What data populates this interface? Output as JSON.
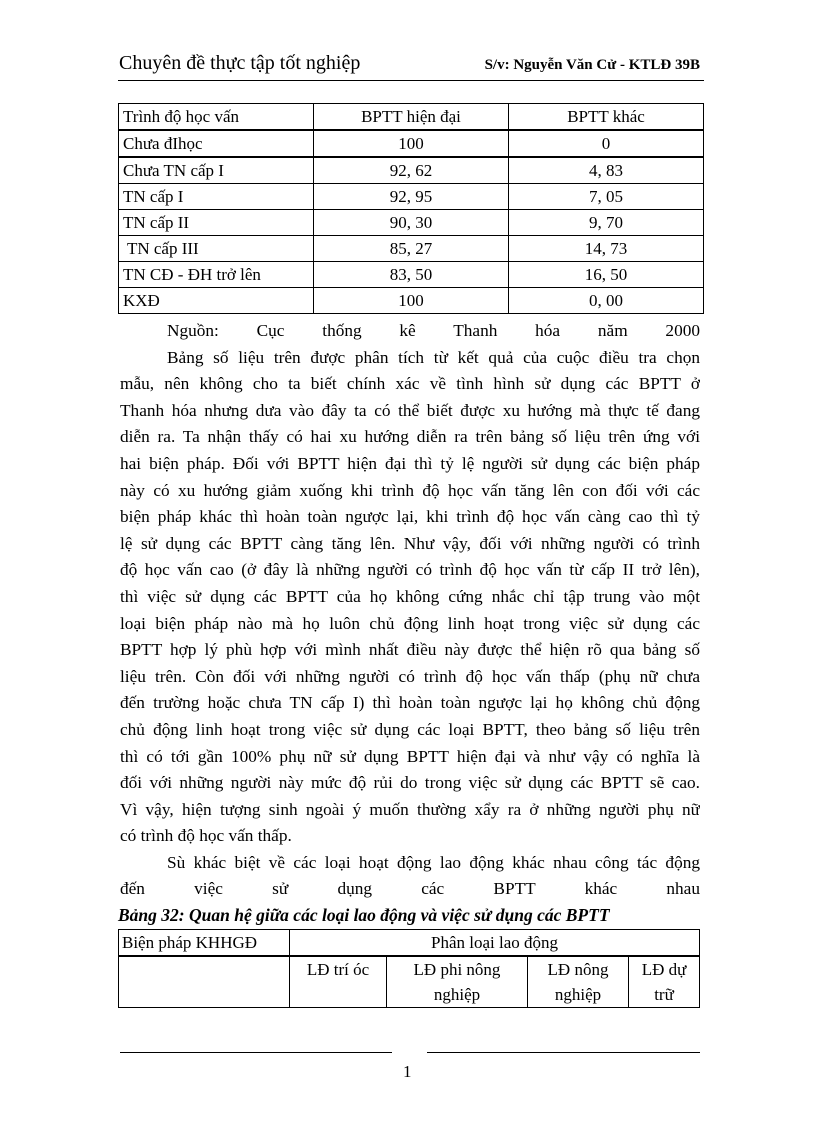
{
  "header": {
    "title": "Chuyên  đề thực  tập  tốt nghiệp",
    "author": "S/v: Nguyễn Văn Cử - KTLĐ 39B"
  },
  "table1": {
    "headers": [
      "Trình độ học vấn",
      "BPTT hiện  đại",
      "BPTT khác"
    ],
    "rows": [
      [
        "Chưa đIhọc",
        "100",
        "0"
      ],
      [
        "Chưa TN cấp I",
        "92, 62",
        "4, 83"
      ],
      [
        "TN cấp I",
        "92, 95",
        "7, 05"
      ],
      [
        "TN cấp II",
        "90, 30",
        "9, 70"
      ],
      [
        " TN cấp III",
        "85, 27",
        "14, 73"
      ],
      [
        "TN CĐ - ĐH trở lên",
        "83, 50",
        "16, 50"
      ],
      [
        "KXĐ",
        "100",
        "0, 00"
      ]
    ]
  },
  "body_lines": [
    {
      "text": "Nguồn: Cục thống kê Thanh hóa năm 2000",
      "indent": true,
      "last": false
    },
    {
      "text": "Bảng số liệu trên được phân tích từ kết quả của cuộc điều tra chọn",
      "indent": true,
      "last": false
    },
    {
      "text": "mẫu, nên không cho ta biết chính xác về tình hình sử dụng các BPTT ở",
      "indent": false,
      "last": false
    },
    {
      "text": "Thanh hóa nhưng dưa vào đây ta có thể biết được xu hướng mà thực tế đang",
      "indent": false,
      "last": false
    },
    {
      "text": "diễn ra. Ta nhận thấy có hai xu hướng diễn ra trên bảng số liệu trên ứng với",
      "indent": false,
      "last": false
    },
    {
      "text": "hai biện pháp. Đối với BPTT hiện đại thì tỷ lệ người sử dụng các biện pháp",
      "indent": false,
      "last": false
    },
    {
      "text": "này có xu hướng giảm xuống khi trình độ học vấn tăng lên con đối với các",
      "indent": false,
      "last": false
    },
    {
      "text": "biện pháp khác thì hoàn toàn ngược lại, khi trình độ học vấn càng cao thì tỷ",
      "indent": false,
      "last": false
    },
    {
      "text": "lệ sử dụng các BPTT càng tăng lên. Như vậy, đối với những người có trình",
      "indent": false,
      "last": false
    },
    {
      "text": "độ học vấn cao (ở đây là những người có trình độ học vấn từ cấp II trở lên),",
      "indent": false,
      "last": false
    },
    {
      "text": "thì việc sử dụng các BPTT của họ không cứng nhắc chỉ tập trung vào một",
      "indent": false,
      "last": false
    },
    {
      "text": "loại biện pháp nào mà họ luôn chủ động linh hoạt trong việc sử dụng các",
      "indent": false,
      "last": false
    },
    {
      "text": "BPTT hợp lý phù hợp với mình nhất điều này được thể hiện rõ qua bảng số",
      "indent": false,
      "last": false
    },
    {
      "text": "liệu trên. Còn đối với những người có trình độ học vấn thấp (phụ nữ chưa",
      "indent": false,
      "last": false
    },
    {
      "text": "đến trường hoặc chưa TN cấp I) thì hoàn toàn ngược lại họ không chủ động",
      "indent": false,
      "last": false
    },
    {
      "text": "chủ động linh hoạt trong việc sử dụng các loại BPTT, theo bảng số liệu trên",
      "indent": false,
      "last": false
    },
    {
      "text": "thì có tới gần 100% phụ nữ sử dụng BPTT hiện đại và như vậy có nghĩa là",
      "indent": false,
      "last": false
    },
    {
      "text": "đối với những người này mức độ rủi do trong việc sử dụng các BPTT sẽ cao.",
      "indent": false,
      "last": false
    },
    {
      "text": "Vì vậy, hiện tượng sinh ngoài ý muốn thường xẩy ra ở những người phụ nữ",
      "indent": false,
      "last": false
    },
    {
      "text": "có trình độ học vấn thấp.",
      "indent": false,
      "last": true
    },
    {
      "text": "Sù khác biệt về các loại hoạt động lao động khác nhau công tác động",
      "indent": true,
      "last": false
    },
    {
      "text": "đến việc sử dụng các BPTT khác nhau",
      "indent": false,
      "last": false
    }
  ],
  "table2": {
    "caption": "Bảng 32: Quan hệ giữa các loại lao động và việc sử dụng các BPTT",
    "header_left": "Biện  pháp KHHGĐ",
    "header_group": "Phân loại  lao  động",
    "subheaders": [
      "LĐ trí óc",
      "LĐ phi nông nghiệp",
      "LĐ nông nghiệp",
      "LĐ dự trữ"
    ]
  },
  "footer": {
    "page_number": "1"
  }
}
